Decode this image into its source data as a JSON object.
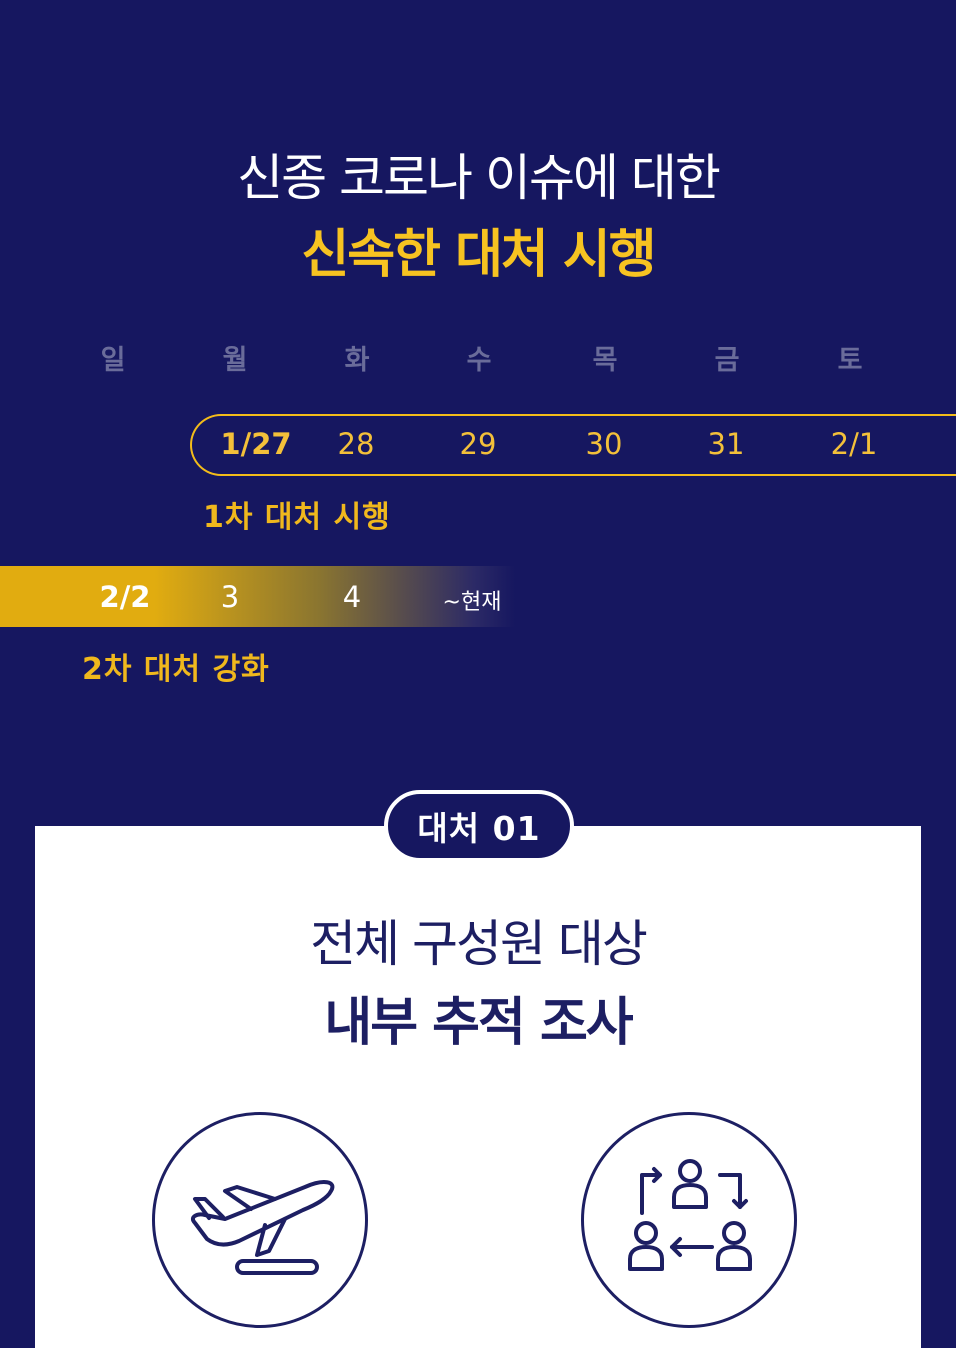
{
  "header": {
    "title_line1": "신종 코로나 이슈에 대한",
    "title_line2": "신속한 대처 시행"
  },
  "calendar": {
    "weekdays": [
      "일",
      "월",
      "화",
      "수",
      "목",
      "금",
      "토"
    ],
    "week1": {
      "days": [
        "1/27",
        "28",
        "29",
        "30",
        "31",
        "2/1"
      ],
      "label": "1차 대처 시행"
    },
    "week2": {
      "days": [
        "2/2",
        "3",
        "4",
        "~현재"
      ],
      "label": "2차 대처 강화"
    }
  },
  "card": {
    "badge": "대처 01",
    "title_line1": "전체 구성원 대상",
    "title_line2": "내부 추적 조사",
    "icons": [
      "airplane-takeoff-icon",
      "people-exchange-icon"
    ]
  },
  "colors": {
    "background": "#161760",
    "accent_yellow": "#f3bc1a",
    "card_text": "#1d1f63",
    "weekday_text": "#6a6c9a"
  }
}
